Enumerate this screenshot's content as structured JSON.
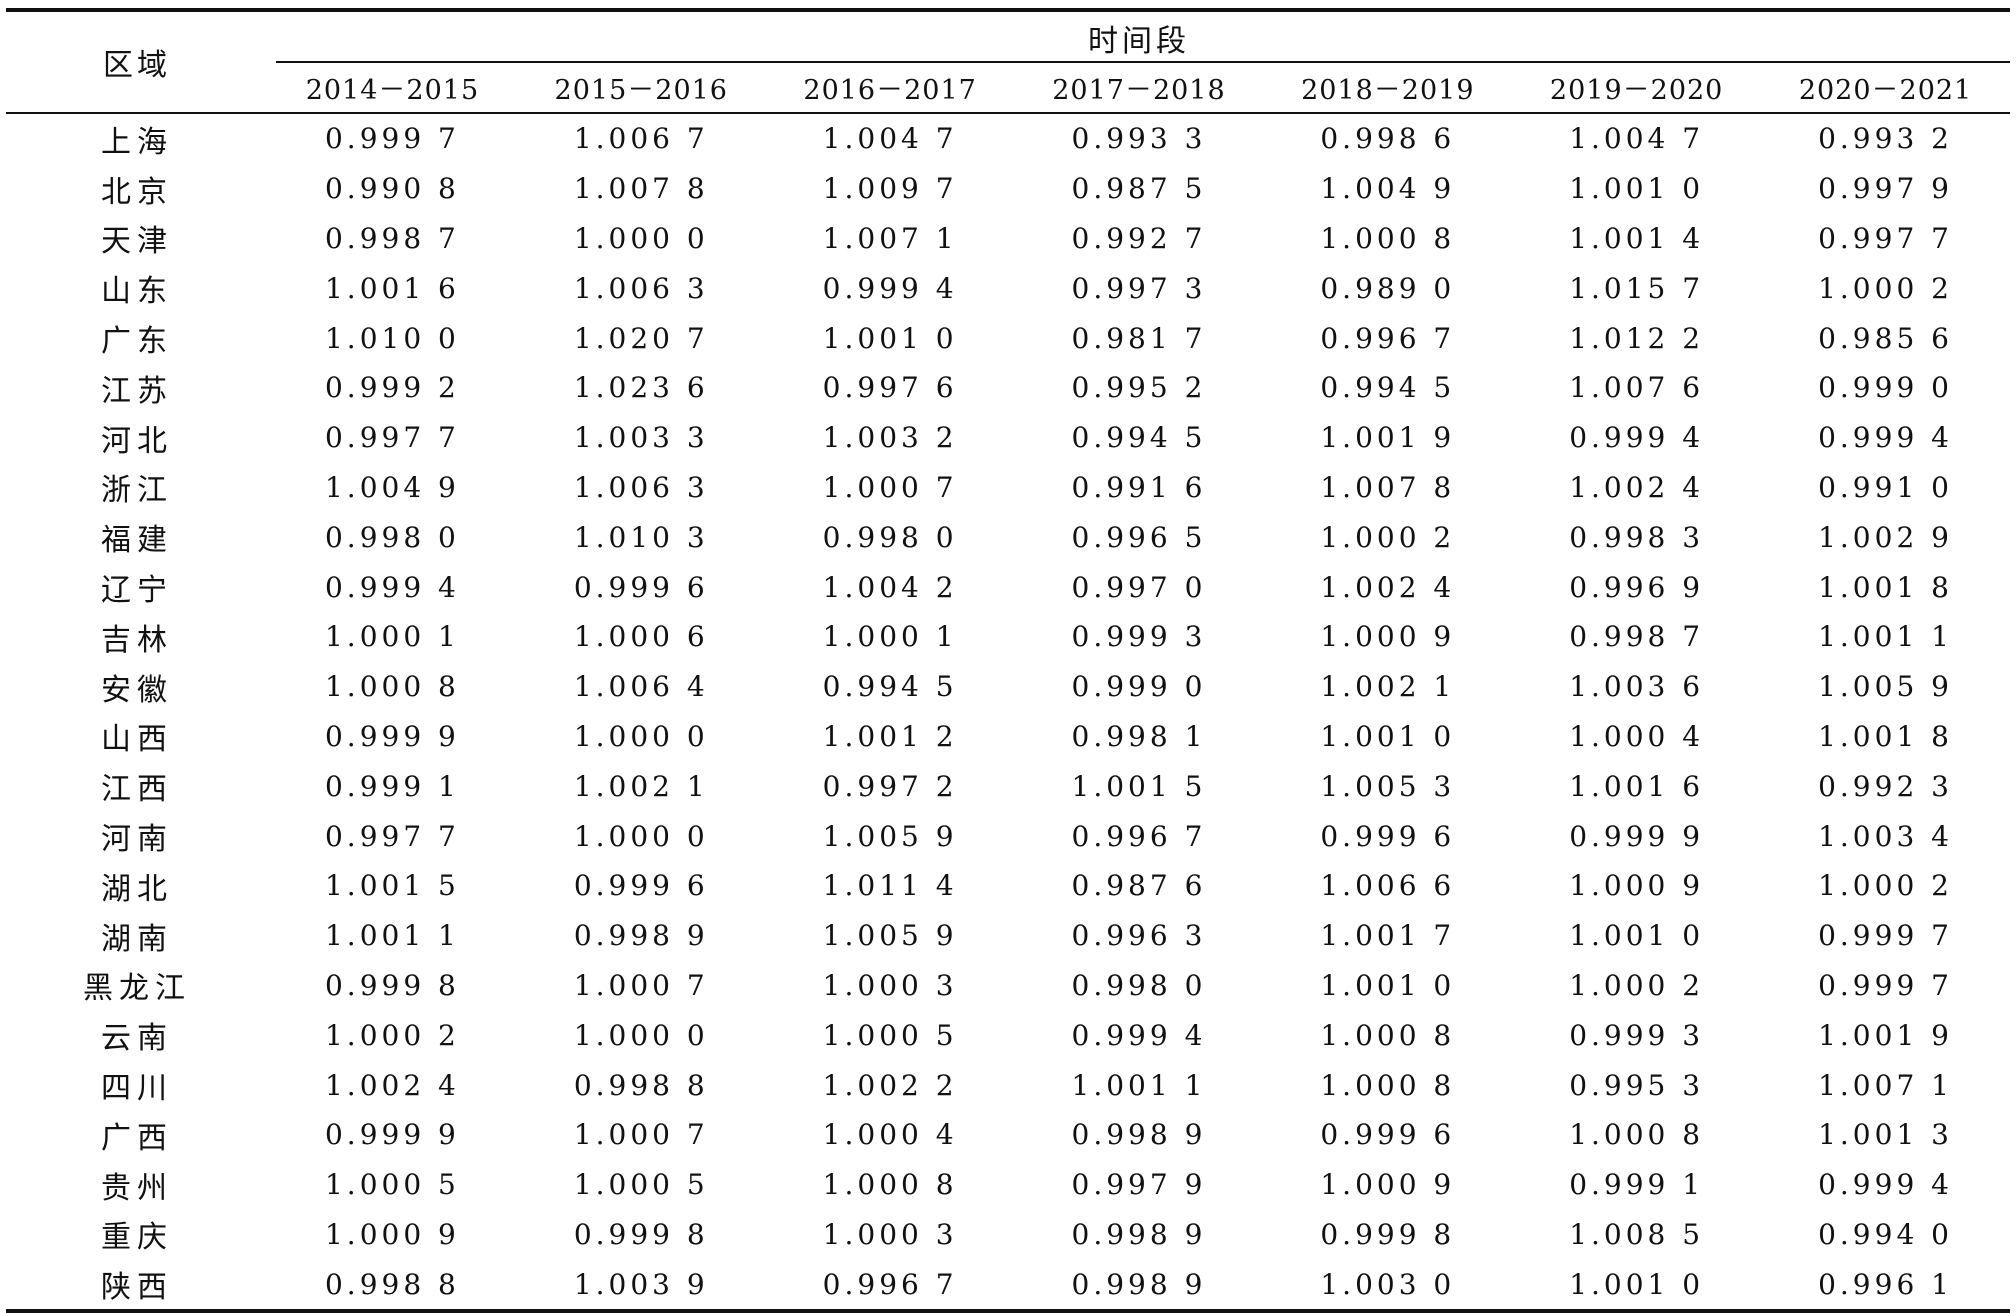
{
  "table": {
    "region_header": "区域",
    "group_header": "时间段",
    "periods": [
      "2014－2015",
      "2015－2016",
      "2016－2017",
      "2017－2018",
      "2018－2019",
      "2019－2020",
      "2020－2021"
    ],
    "rows": [
      {
        "region": "上海",
        "values": [
          "0.999 7",
          "1.006 7",
          "1.004 7",
          "0.993 3",
          "0.998 6",
          "1.004 7",
          "0.993 2"
        ]
      },
      {
        "region": "北京",
        "values": [
          "0.990 8",
          "1.007 8",
          "1.009 7",
          "0.987 5",
          "1.004 9",
          "1.001 0",
          "0.997 9"
        ]
      },
      {
        "region": "天津",
        "values": [
          "0.998 7",
          "1.000 0",
          "1.007 1",
          "0.992 7",
          "1.000 8",
          "1.001 4",
          "0.997 7"
        ]
      },
      {
        "region": "山东",
        "values": [
          "1.001 6",
          "1.006 3",
          "0.999 4",
          "0.997 3",
          "0.989 0",
          "1.015 7",
          "1.000 2"
        ]
      },
      {
        "region": "广东",
        "values": [
          "1.010 0",
          "1.020 7",
          "1.001 0",
          "0.981 7",
          "0.996 7",
          "1.012 2",
          "0.985 6"
        ]
      },
      {
        "region": "江苏",
        "values": [
          "0.999 2",
          "1.023 6",
          "0.997 6",
          "0.995 2",
          "0.994 5",
          "1.007 6",
          "0.999 0"
        ]
      },
      {
        "region": "河北",
        "values": [
          "0.997 7",
          "1.003 3",
          "1.003 2",
          "0.994 5",
          "1.001 9",
          "0.999 4",
          "0.999 4"
        ]
      },
      {
        "region": "浙江",
        "values": [
          "1.004 9",
          "1.006 3",
          "1.000 7",
          "0.991 6",
          "1.007 8",
          "1.002 4",
          "0.991 0"
        ]
      },
      {
        "region": "福建",
        "values": [
          "0.998 0",
          "1.010 3",
          "0.998 0",
          "0.996 5",
          "1.000 2",
          "0.998 3",
          "1.002 9"
        ]
      },
      {
        "region": "辽宁",
        "values": [
          "0.999 4",
          "0.999 6",
          "1.004 2",
          "0.997 0",
          "1.002 4",
          "0.996 9",
          "1.001 8"
        ]
      },
      {
        "region": "吉林",
        "values": [
          "1.000 1",
          "1.000 6",
          "1.000 1",
          "0.999 3",
          "1.000 9",
          "0.998 7",
          "1.001 1"
        ]
      },
      {
        "region": "安徽",
        "values": [
          "1.000 8",
          "1.006 4",
          "0.994 5",
          "0.999 0",
          "1.002 1",
          "1.003 6",
          "1.005 9"
        ]
      },
      {
        "region": "山西",
        "values": [
          "0.999 9",
          "1.000 0",
          "1.001 2",
          "0.998 1",
          "1.001 0",
          "1.000 4",
          "1.001 8"
        ]
      },
      {
        "region": "江西",
        "values": [
          "0.999 1",
          "1.002 1",
          "0.997 2",
          "1.001 5",
          "1.005 3",
          "1.001 6",
          "0.992 3"
        ]
      },
      {
        "region": "河南",
        "values": [
          "0.997 7",
          "1.000 0",
          "1.005 9",
          "0.996 7",
          "0.999 6",
          "0.999 9",
          "1.003 4"
        ]
      },
      {
        "region": "湖北",
        "values": [
          "1.001 5",
          "0.999 6",
          "1.011 4",
          "0.987 6",
          "1.006 6",
          "1.000 9",
          "1.000 2"
        ]
      },
      {
        "region": "湖南",
        "values": [
          "1.001 1",
          "0.998 9",
          "1.005 9",
          "0.996 3",
          "1.001 7",
          "1.001 0",
          "0.999 7"
        ]
      },
      {
        "region": "黑龙江",
        "values": [
          "0.999 8",
          "1.000 7",
          "1.000 3",
          "0.998 0",
          "1.001 0",
          "1.000 2",
          "0.999 7"
        ]
      },
      {
        "region": "云南",
        "values": [
          "1.000 2",
          "1.000 0",
          "1.000 5",
          "0.999 4",
          "1.000 8",
          "0.999 3",
          "1.001 9"
        ]
      },
      {
        "region": "四川",
        "values": [
          "1.002 4",
          "0.998 8",
          "1.002 2",
          "1.001 1",
          "1.000 8",
          "0.995 3",
          "1.007 1"
        ]
      },
      {
        "region": "广西",
        "values": [
          "0.999 9",
          "1.000 7",
          "1.000 4",
          "0.998 9",
          "0.999 6",
          "1.000 8",
          "1.001 3"
        ]
      },
      {
        "region": "贵州",
        "values": [
          "1.000 5",
          "1.000 5",
          "1.000 8",
          "0.997 9",
          "1.000 9",
          "0.999 1",
          "0.999 4"
        ]
      },
      {
        "region": "重庆",
        "values": [
          "1.000 9",
          "0.999 8",
          "1.000 3",
          "0.998 9",
          "0.999 8",
          "1.008 5",
          "0.994 0"
        ]
      },
      {
        "region": "陕西",
        "values": [
          "0.998 8",
          "1.003 9",
          "0.996 7",
          "0.998 9",
          "1.003 0",
          "1.001 0",
          "0.996 1"
        ]
      }
    ]
  }
}
